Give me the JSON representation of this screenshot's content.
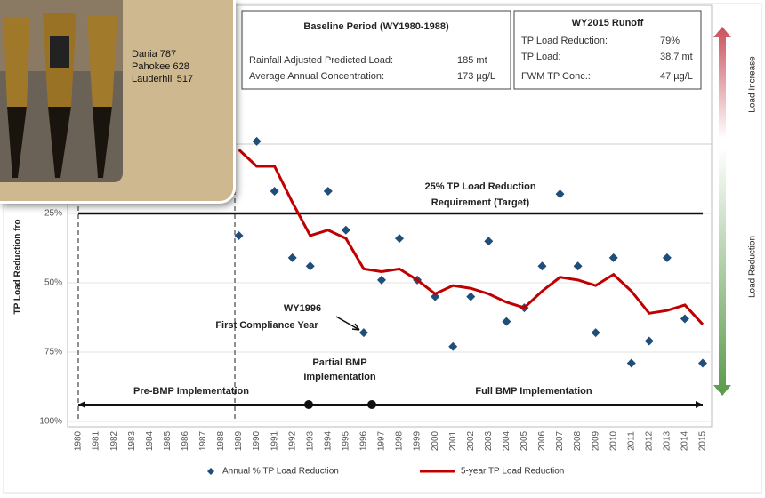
{
  "chart_data": {
    "type": "combo",
    "y_label": "TP Load Reduction fro",
    "categories": [
      "1980",
      "1981",
      "1982",
      "1983",
      "1984",
      "1985",
      "1986",
      "1987",
      "1988",
      "1989",
      "1990",
      "1991",
      "1992",
      "1993",
      "1994",
      "1995",
      "1996",
      "1997",
      "1998",
      "1999",
      "2000",
      "2001",
      "2002",
      "2003",
      "2004",
      "2005",
      "2006",
      "2007",
      "2008",
      "2009",
      "2010",
      "2011",
      "2012",
      "2013",
      "2014",
      "2015"
    ],
    "series": [
      {
        "name": "Annual % TP Load Reduction",
        "type": "scatter",
        "color": "#1f4e79",
        "values": [
          null,
          null,
          null,
          null,
          null,
          null,
          null,
          null,
          null,
          33,
          -1,
          17,
          41,
          44,
          17,
          31,
          68,
          49,
          34,
          49,
          55,
          73,
          55,
          35,
          64,
          59,
          44,
          18,
          44,
          68,
          41,
          79,
          71,
          41,
          63,
          79
        ]
      },
      {
        "name": "5-year TP Load Reduction",
        "type": "line",
        "color": "#c00000",
        "values": [
          null,
          null,
          null,
          null,
          null,
          null,
          null,
          null,
          null,
          2,
          8,
          8,
          21,
          33,
          31,
          34,
          45,
          46,
          45,
          49,
          54,
          51,
          52,
          54,
          57,
          59,
          53,
          48,
          49,
          51,
          47,
          53,
          61,
          60,
          58,
          65
        ]
      }
    ],
    "ylim": [
      -50,
      100
    ],
    "y_inverted": true,
    "yticks": [
      {
        "value": 25,
        "label": "25%"
      },
      {
        "value": 50,
        "label": "50%"
      },
      {
        "value": 75,
        "label": "75%"
      },
      {
        "value": 100,
        "label": "100%"
      }
    ],
    "grid": true,
    "target": {
      "value": 25,
      "label": [
        "25% TP Load Reduction",
        "Requirement (Target)"
      ]
    },
    "baseline_box": {
      "title": "Baseline Period (WY1980-1988)",
      "rows": [
        [
          "Rainfall Adjusted Predicted Load:",
          "185 mt"
        ],
        [
          "Average Annual Concentration:",
          "173 µg/L"
        ]
      ]
    },
    "runoff_box": {
      "title": "WY2015 Runoff",
      "rows": [
        [
          "TP Load Reduction:",
          "79%"
        ],
        [
          "TP Load:",
          "38.7 mt"
        ],
        [
          "FWM TP Conc.:",
          "47 µg/L"
        ]
      ]
    },
    "annotation": [
      "WY1996",
      "First Compliance Year"
    ],
    "phases": [
      [
        "Pre-BMP Implementation"
      ],
      [
        "Partial BMP",
        "Implementation"
      ],
      [
        "Full BMP Implementation"
      ]
    ],
    "side_labels": [
      "Load Increase",
      "Load Reduction"
    ]
  },
  "photo_card": {
    "lines": [
      "Dania 787",
      "Pahokee 628",
      "Lauderhill 517"
    ]
  }
}
